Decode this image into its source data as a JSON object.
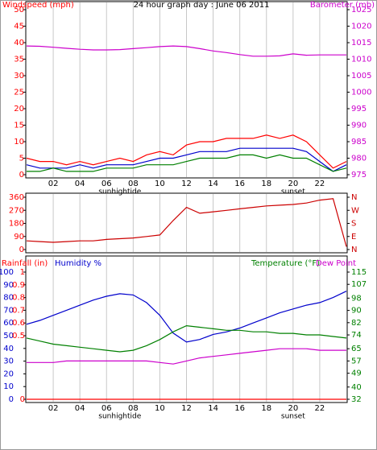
{
  "chart_data": [
    {
      "type": "line",
      "title": "24 hour graph day : June 06 2011",
      "ylabel": "Windspeed (mph)",
      "y2label": "Barometer (mb)",
      "label_colors": {
        "ylabel": "#ff0000",
        "y2label": "#cc00cc",
        "yticks": "#ff0000",
        "y2ticks": "#cc00cc"
      },
      "x": [
        0,
        1,
        2,
        3,
        4,
        5,
        6,
        7,
        8,
        9,
        10,
        11,
        12,
        13,
        14,
        15,
        16,
        17,
        18,
        19,
        20,
        21,
        22,
        23,
        24
      ],
      "xlim": [
        0,
        24
      ],
      "xticks": [
        {
          "value": 2,
          "label": "02"
        },
        {
          "value": 4,
          "label": "04"
        },
        {
          "value": 6,
          "label": "06"
        },
        {
          "value": 8,
          "label": "08"
        },
        {
          "value": 10,
          "label": "10"
        },
        12,
        14,
        16,
        18,
        20,
        22
      ],
      "annotations": [
        {
          "x": 7,
          "label": "sunhightide"
        },
        {
          "x": 20,
          "label": "sunset"
        }
      ],
      "ylim": [
        0,
        50
      ],
      "yticks": [
        0,
        5,
        10,
        15,
        20,
        25,
        30,
        35,
        40,
        45,
        50
      ],
      "y2lim": [
        975,
        1025
      ],
      "y2ticks": [
        975,
        980,
        985,
        990,
        995,
        1000,
        1005,
        1010,
        1015,
        1020,
        1025
      ],
      "series": [
        {
          "color": "#ff0000",
          "values": [
            5,
            4,
            4,
            3,
            4,
            3,
            4,
            5,
            4,
            6,
            7,
            6,
            9,
            10,
            10,
            11,
            11,
            11,
            12,
            11,
            12,
            10,
            6,
            2,
            4
          ]
        },
        {
          "color": "#0000cc",
          "values": [
            3,
            2,
            2,
            2,
            3,
            2,
            3,
            3,
            3,
            4,
            5,
            5,
            6,
            7,
            7,
            7,
            8,
            8,
            8,
            8,
            8,
            7,
            4,
            1,
            3
          ]
        },
        {
          "color": "#008000",
          "values": [
            1,
            1,
            2,
            1,
            1,
            1,
            2,
            2,
            2,
            3,
            3,
            3,
            4,
            5,
            5,
            5,
            6,
            6,
            5,
            6,
            5,
            5,
            3,
            1,
            2
          ]
        },
        {
          "color": "#cc00cc",
          "axis": "y2",
          "values": [
            1014,
            1013.9,
            1013.6,
            1013.3,
            1013,
            1012.8,
            1012.8,
            1012.9,
            1013.2,
            1013.5,
            1013.8,
            1014,
            1013.8,
            1013.2,
            1012.5,
            1012,
            1011.4,
            1010.9,
            1010.9,
            1011,
            1011.6,
            1011.2,
            1011.3,
            1011.3,
            1011.3
          ]
        }
      ]
    },
    {
      "type": "line",
      "label_colors": {
        "yticks": "#ff0000",
        "y2ticks": "#cc0000"
      },
      "x": [
        0,
        1,
        2,
        3,
        4,
        5,
        6,
        7,
        8,
        9,
        10,
        11,
        12,
        13,
        14,
        15,
        16,
        17,
        18,
        19,
        20,
        21,
        22,
        23,
        24
      ],
      "xlim": [
        0,
        24
      ],
      "ylim": [
        0,
        360
      ],
      "yticks": [
        0,
        90,
        180,
        270,
        360
      ],
      "y2lim": [
        0,
        360
      ],
      "y2ticks": [
        {
          "value": 360,
          "label": "N"
        },
        {
          "value": 270,
          "label": "W"
        },
        {
          "value": 180,
          "label": "S"
        },
        {
          "value": 90,
          "label": "E"
        },
        {
          "value": 0,
          "label": "N"
        }
      ],
      "series": [
        {
          "color": "#cc0000",
          "values": [
            60,
            55,
            50,
            55,
            60,
            60,
            70,
            75,
            80,
            90,
            100,
            200,
            290,
            250,
            260,
            270,
            280,
            290,
            300,
            305,
            310,
            320,
            340,
            350,
            20
          ]
        }
      ]
    },
    {
      "type": "line",
      "ylabel": "Humidity %",
      "rainlabel": "Rainfall (in)",
      "y2label": "Temperature (°F)",
      "dewlabel": "Dew Point",
      "label_colors": {
        "ylabel": "#0000cc",
        "rainlabel": "#ff0000",
        "y2label": "#008000",
        "dewlabel": "#cc00cc",
        "yticks": "#0000cc",
        "rainticks": "#ff0000",
        "y2ticks": "#008000"
      },
      "x": [
        0,
        1,
        2,
        3,
        4,
        5,
        6,
        7,
        8,
        9,
        10,
        11,
        12,
        13,
        14,
        15,
        16,
        17,
        18,
        19,
        20,
        21,
        22,
        23,
        24
      ],
      "xlim": [
        0,
        24
      ],
      "xticks": [
        {
          "value": 2,
          "label": "02"
        },
        {
          "value": 4,
          "label": "04"
        },
        {
          "value": 6,
          "label": "06"
        },
        {
          "value": 8,
          "label": "08"
        },
        {
          "value": 10,
          "label": "10"
        },
        12,
        14,
        16,
        18,
        20,
        22
      ],
      "annotations": [
        {
          "x": 7,
          "label": "sunhightide"
        },
        {
          "x": 20,
          "label": "sunset"
        }
      ],
      "ylim": [
        0,
        100
      ],
      "yticks": [
        0,
        10,
        20,
        30,
        40,
        50,
        60,
        70,
        80,
        90,
        100
      ],
      "rainlim": [
        0,
        1
      ],
      "rainticks": [
        0,
        0.5,
        0.6,
        0.7,
        0.8,
        0.9,
        1
      ],
      "y2lim": [
        32,
        115
      ],
      "y2ticks": [
        32,
        40,
        49,
        57,
        65,
        74,
        82,
        90,
        98,
        107,
        115
      ],
      "series": [
        {
          "color": "#0000cc",
          "values": [
            59,
            62,
            66,
            70,
            74,
            78,
            81,
            83,
            82,
            76,
            66,
            52,
            45,
            47,
            51,
            53,
            56,
            60,
            64,
            68,
            71,
            74,
            76,
            80,
            85
          ]
        },
        {
          "color": "#008000",
          "axis": "y2",
          "values": [
            72,
            70,
            68,
            67,
            66,
            65,
            64,
            63,
            64,
            67,
            71,
            76,
            80,
            79,
            78,
            77,
            77,
            76,
            76,
            75,
            75,
            74,
            74,
            73,
            72
          ]
        },
        {
          "color": "#cc00cc",
          "axis": "y2",
          "values": [
            56,
            56,
            56,
            57,
            57,
            57,
            57,
            57,
            57,
            57,
            56,
            55,
            57,
            59,
            60,
            61,
            62,
            63,
            64,
            65,
            65,
            65,
            64,
            64,
            64
          ]
        },
        {
          "color": "#ff0000",
          "axis": "rain",
          "values": [
            0,
            0,
            0,
            0,
            0,
            0,
            0,
            0,
            0,
            0,
            0,
            0,
            0,
            0,
            0,
            0,
            0,
            0,
            0,
            0,
            0,
            0,
            0,
            0,
            0
          ]
        }
      ]
    }
  ]
}
